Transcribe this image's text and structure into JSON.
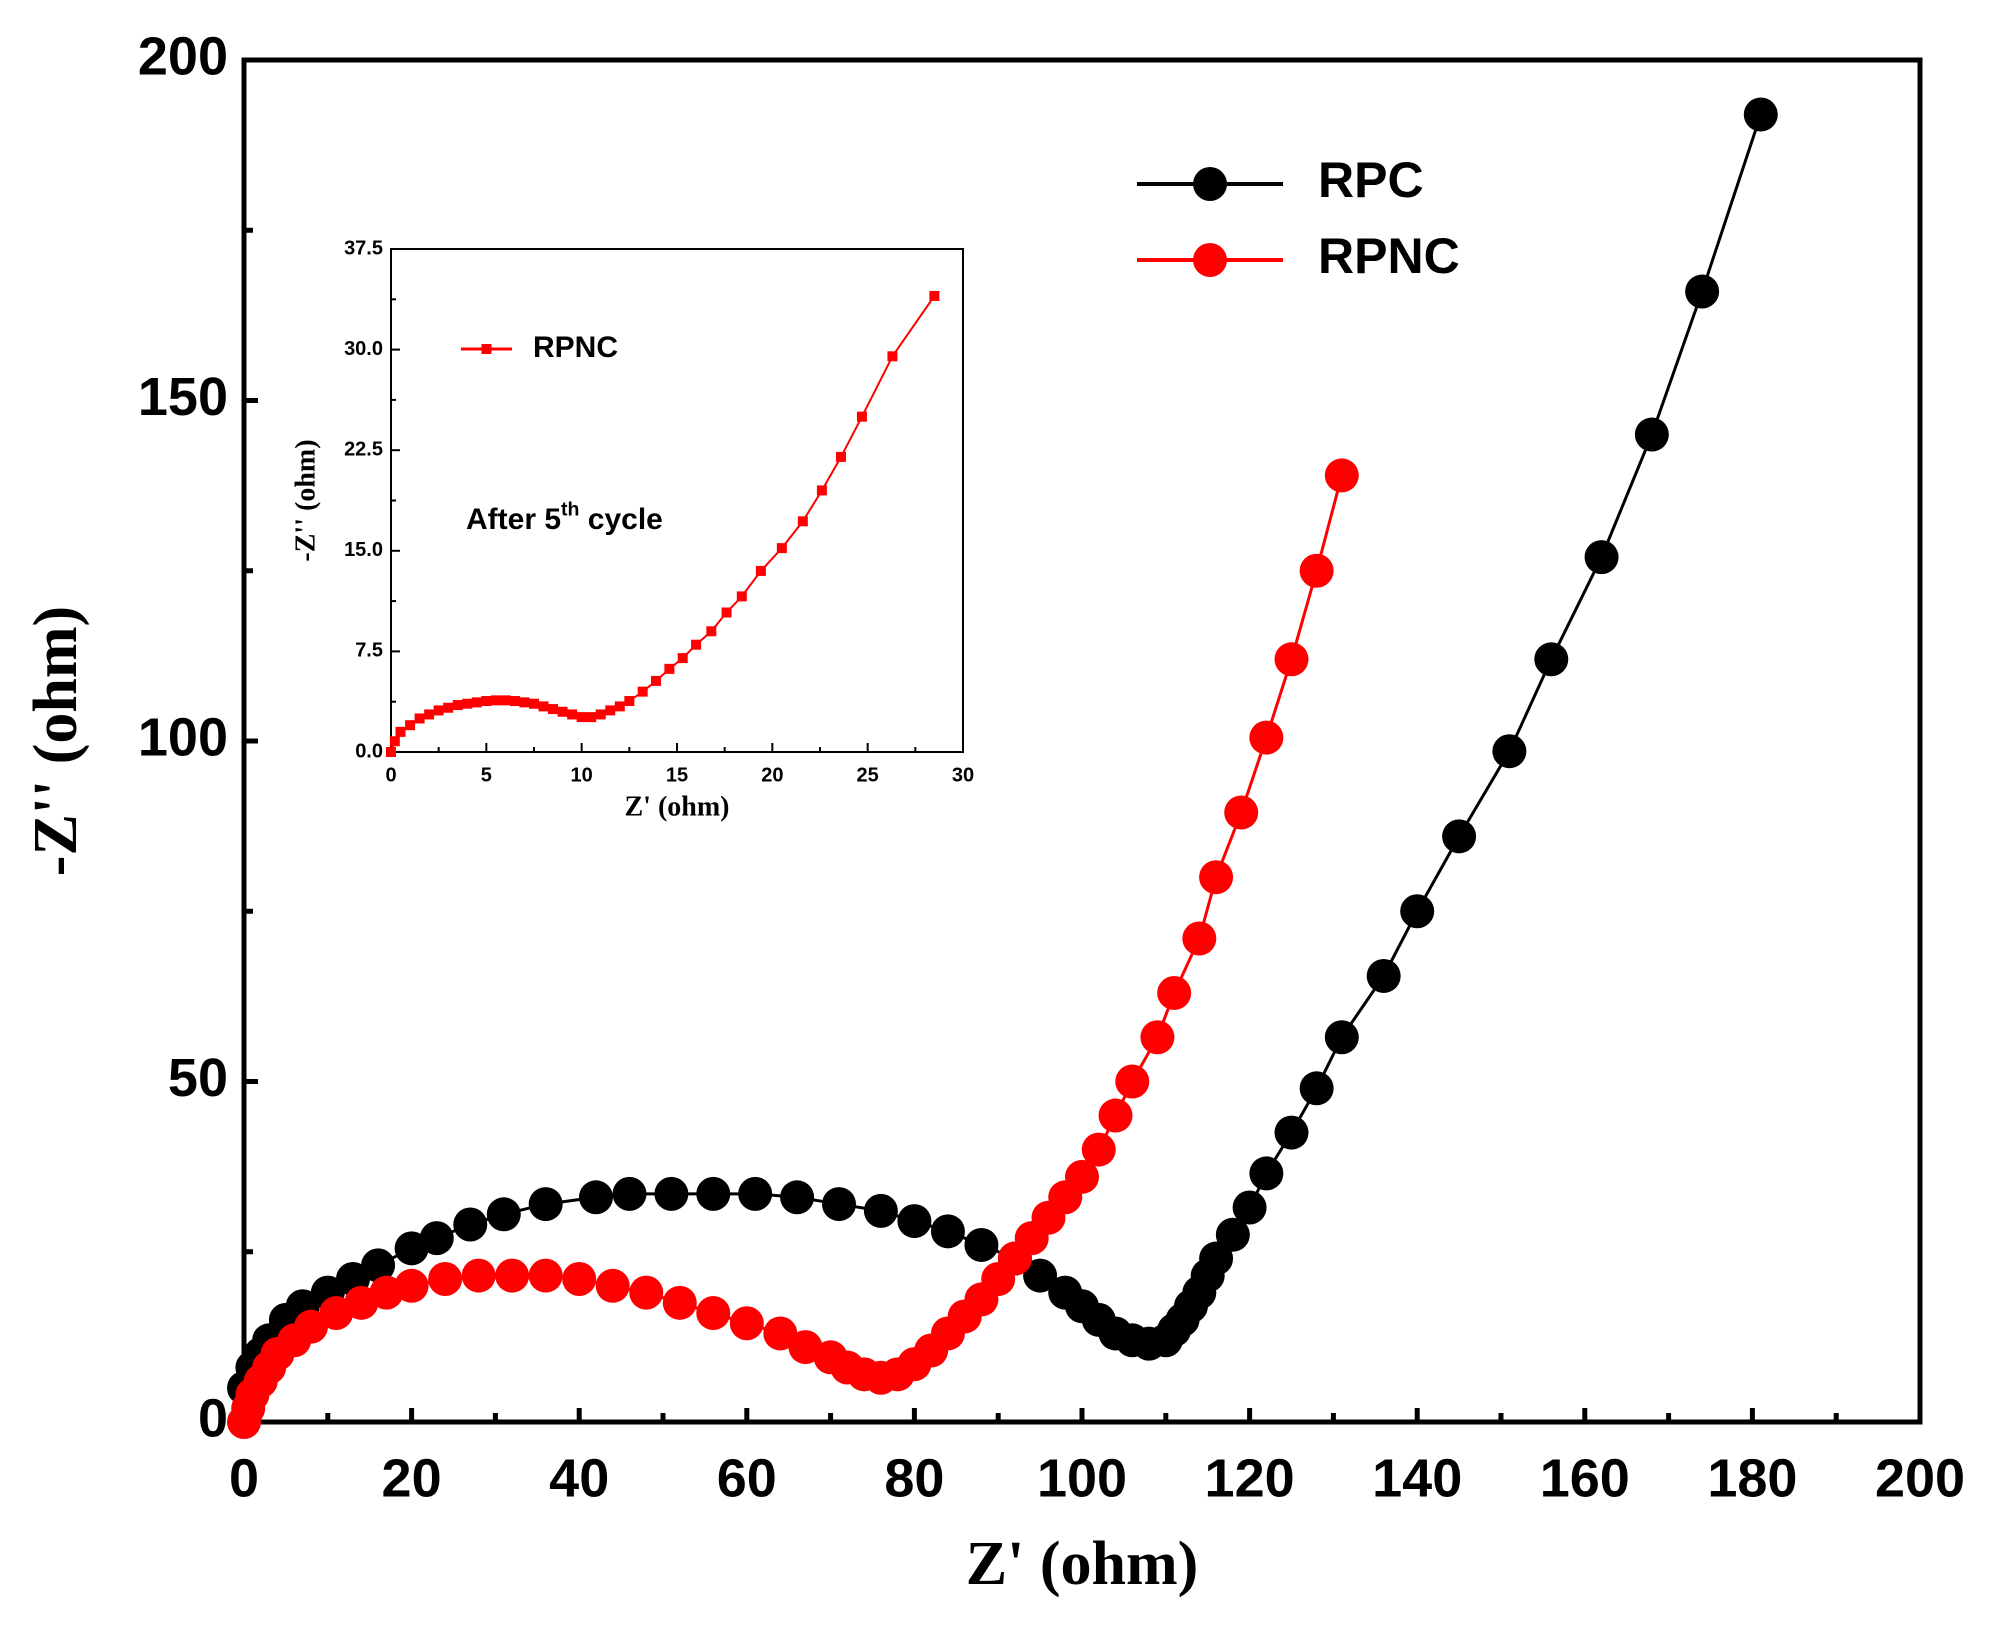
{
  "chart_data": [
    {
      "type": "line",
      "xlabel": "Z' (ohm)",
      "ylabel": "-Z'' (ohm)",
      "xlim": [
        0,
        200
      ],
      "xticks": [
        0,
        20,
        40,
        60,
        80,
        100,
        120,
        140,
        160,
        180,
        200
      ],
      "xminor": [
        10,
        30,
        50,
        70,
        90,
        110,
        130,
        150,
        170,
        190
      ],
      "ylim": [
        0,
        200
      ],
      "yticks": [
        0,
        50,
        100,
        150,
        200
      ],
      "yminor": [
        25,
        75,
        125,
        175
      ],
      "legend": "upper right",
      "series": [
        {
          "name": "RPC",
          "color": "#000000",
          "marker": "circle",
          "x": [
            0,
            1,
            2,
            3,
            5,
            7,
            10,
            13,
            16,
            20,
            23,
            27,
            31,
            36,
            42,
            46,
            51,
            56,
            61,
            66,
            71,
            76,
            80,
            84,
            88,
            92,
            95,
            98,
            100,
            102,
            104,
            106,
            108,
            110,
            111,
            112,
            113,
            114,
            115,
            116,
            118,
            120,
            122,
            125,
            128,
            131,
            136,
            140,
            145,
            151,
            156,
            162,
            168,
            174,
            181
          ],
          "values": [
            5,
            8,
            10,
            12,
            15,
            17,
            19,
            21,
            23,
            25.5,
            27,
            29,
            30.5,
            32,
            33,
            33.5,
            33.5,
            33.5,
            33.5,
            33,
            32,
            31,
            29.5,
            28,
            26,
            24,
            21.5,
            19,
            17,
            15,
            13,
            12,
            11.5,
            12,
            13.5,
            15,
            17,
            19,
            21.5,
            24,
            27.5,
            31.5,
            36.5,
            42.5,
            49,
            56.5,
            65.5,
            75,
            86,
            98.5,
            112,
            127,
            145,
            166,
            192
          ]
        },
        {
          "name": "RPNC",
          "color": "#ff0000",
          "marker": "circle",
          "x": [
            0,
            0.5,
            1,
            2,
            3,
            4,
            6,
            8,
            11,
            14,
            17,
            20,
            24,
            28,
            32,
            36,
            40,
            44,
            48,
            52,
            56,
            60,
            64,
            67,
            70,
            72,
            74,
            76,
            78,
            80,
            82,
            84,
            86,
            88,
            90,
            92,
            94,
            96,
            98,
            100,
            102,
            104,
            106,
            109,
            111,
            114,
            116,
            119,
            122,
            125,
            128,
            131
          ],
          "values": [
            0,
            2,
            4,
            6,
            8,
            10,
            12,
            14,
            16,
            17.5,
            19,
            20,
            21,
            21.5,
            21.5,
            21.5,
            21,
            20,
            19,
            17.5,
            16,
            14.5,
            13,
            11,
            9.5,
            8,
            7,
            6.5,
            7,
            8.5,
            10.5,
            13,
            15.5,
            18,
            21,
            24,
            27,
            30,
            33,
            36,
            40,
            45,
            50,
            56.5,
            63,
            71,
            80,
            89.5,
            100.5,
            112,
            125,
            139
          ]
        }
      ]
    },
    {
      "type": "line",
      "xlabel": "Z' (ohm)",
      "ylabel": "-Z'' (ohm)",
      "annotation": [
        "After 5",
        "th",
        " cycle"
      ],
      "xlim": [
        0,
        30
      ],
      "xticks": [
        0,
        5,
        10,
        15,
        20,
        25,
        30
      ],
      "xminor": [
        2.5,
        7.5,
        12.5,
        17.5,
        22.5,
        27.5
      ],
      "ylim": [
        0,
        37.5
      ],
      "yticks": [
        {
          "value": 0,
          "label": "0.0"
        },
        7.5,
        {
          "value": 15,
          "label": "15.0"
        },
        22.5,
        {
          "value": 30,
          "label": "30.0"
        },
        37.5
      ],
      "yminor": [
        3.75,
        11.25,
        18.75,
        26.25,
        33.75
      ],
      "legend": "upper left",
      "series": [
        {
          "name": "RPNC",
          "color": "#ff0000",
          "marker": "square",
          "x": [
            0,
            0.2,
            0.5,
            1,
            1.5,
            2,
            2.5,
            3,
            3.5,
            4,
            4.5,
            5,
            5.5,
            6,
            6.5,
            7,
            7.5,
            8,
            8.5,
            9,
            9.5,
            10,
            10.5,
            11,
            11.5,
            12,
            12.5,
            13.2,
            13.9,
            14.6,
            15.3,
            16,
            16.8,
            17.6,
            18.4,
            19.4,
            20.5,
            21.6,
            22.6,
            23.6,
            24.7,
            26.3,
            28.5
          ],
          "values": [
            0,
            0.8,
            1.5,
            2,
            2.5,
            2.8,
            3.1,
            3.3,
            3.5,
            3.6,
            3.7,
            3.8,
            3.85,
            3.85,
            3.8,
            3.7,
            3.6,
            3.4,
            3.2,
            3,
            2.8,
            2.6,
            2.6,
            2.8,
            3.1,
            3.4,
            3.8,
            4.5,
            5.3,
            6.2,
            7,
            8,
            9,
            10.4,
            11.6,
            13.5,
            15.2,
            17.2,
            19.5,
            22,
            25,
            29.5,
            34
          ]
        }
      ]
    }
  ]
}
